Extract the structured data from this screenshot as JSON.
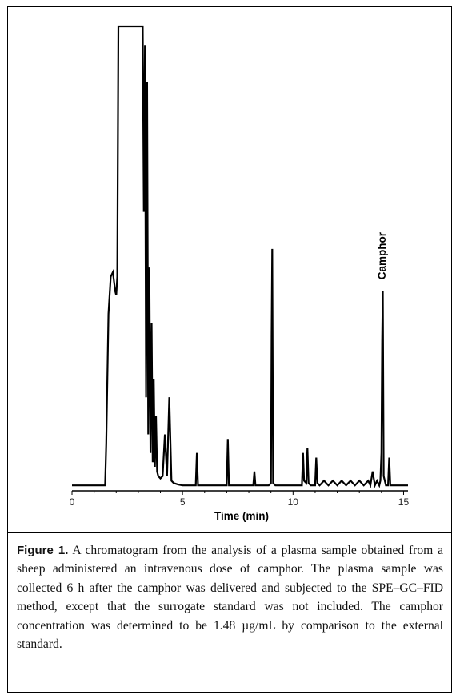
{
  "chart_data": {
    "type": "line",
    "xlabel": "Time (min)",
    "ylabel": "",
    "xlim": [
      0,
      15.2
    ],
    "ylim": [
      0,
      100
    ],
    "x_ticks": [
      0,
      5,
      10,
      15
    ],
    "grid": false,
    "annotations": [
      {
        "text": "Camphor",
        "x": 14.0,
        "y": 44
      }
    ],
    "series": [
      {
        "x": [
          0,
          1.5,
          1.55,
          1.65,
          1.75,
          1.85,
          1.9,
          1.95,
          2.0,
          2.05,
          2.1,
          2.15,
          2.2,
          2.3,
          2.4,
          2.5,
          2.55,
          2.6,
          2.65,
          2.7,
          2.75,
          2.8,
          2.9,
          3.0,
          3.1,
          3.2,
          3.25,
          3.3,
          3.35,
          3.4,
          3.45,
          3.5,
          3.55,
          3.6,
          3.65,
          3.7,
          3.75,
          3.8,
          3.85,
          3.9,
          4.0,
          4.1,
          4.2,
          4.3,
          4.4,
          4.5,
          4.6,
          4.8,
          5.0,
          5.2,
          5.4,
          5.6,
          5.65,
          5.7,
          5.8,
          6.0,
          6.2,
          6.4,
          6.6,
          6.8,
          7.0,
          7.05,
          7.1,
          7.2,
          7.5,
          7.8,
          8.0,
          8.2,
          8.25,
          8.3,
          8.4,
          8.6,
          8.8,
          8.9,
          9.0,
          9.03,
          9.06,
          9.1,
          9.2,
          9.5,
          9.8,
          10.0,
          10.2,
          10.4,
          10.45,
          10.5,
          10.6,
          10.65,
          10.7,
          10.8,
          10.9,
          11.0,
          11.05,
          11.1,
          11.2,
          11.4,
          11.6,
          11.8,
          12.0,
          12.2,
          12.4,
          12.6,
          12.8,
          13.0,
          13.2,
          13.4,
          13.5,
          13.6,
          13.7,
          13.8,
          13.9,
          13.95,
          14.0,
          14.03,
          14.06,
          14.1,
          14.2,
          14.3,
          14.35,
          14.4,
          14.5,
          14.7,
          15.0,
          15.2
        ],
        "y": [
          1,
          1,
          10,
          38,
          46,
          47,
          45,
          43,
          42,
          46,
          100,
          100,
          100,
          100,
          100,
          100,
          100,
          100,
          100,
          100,
          100,
          100,
          100,
          100,
          100,
          100,
          60,
          96,
          20,
          88,
          12,
          48,
          8,
          36,
          6,
          24,
          5,
          16,
          4,
          3,
          2.5,
          3,
          12,
          3,
          20,
          2,
          1.5,
          1.2,
          1,
          1,
          1,
          1,
          8,
          1,
          1,
          1,
          1,
          1,
          1,
          1,
          1,
          11,
          1,
          1,
          1,
          1,
          1,
          1,
          4,
          1,
          1,
          1,
          1,
          1,
          1.5,
          33,
          52,
          1.5,
          1,
          1,
          1,
          1,
          1,
          1,
          8,
          2,
          1.5,
          9,
          1.5,
          1,
          1,
          1,
          7,
          1.5,
          1,
          2,
          1,
          2,
          1,
          2,
          1,
          2,
          1,
          2,
          1,
          2,
          1,
          4,
          1,
          2,
          1,
          2,
          8,
          32,
          43,
          3,
          1,
          1,
          7,
          1,
          1,
          1,
          1,
          1
        ]
      }
    ]
  },
  "caption": {
    "label": "Figure 1.",
    "text": " A chromatogram from the analysis of a plasma sample obtained from a sheep administered an intravenous dose of camphor. The plasma sample was collected 6 h after the camphor was delivered and subjected to the SPE–GC–FID method, except that the surrogate standard was not included. The camphor concentration was determined to be 1.48 µg/mL by comparison to the external standard."
  },
  "colors": {
    "trace": "#000000",
    "axis": "#000000"
  }
}
